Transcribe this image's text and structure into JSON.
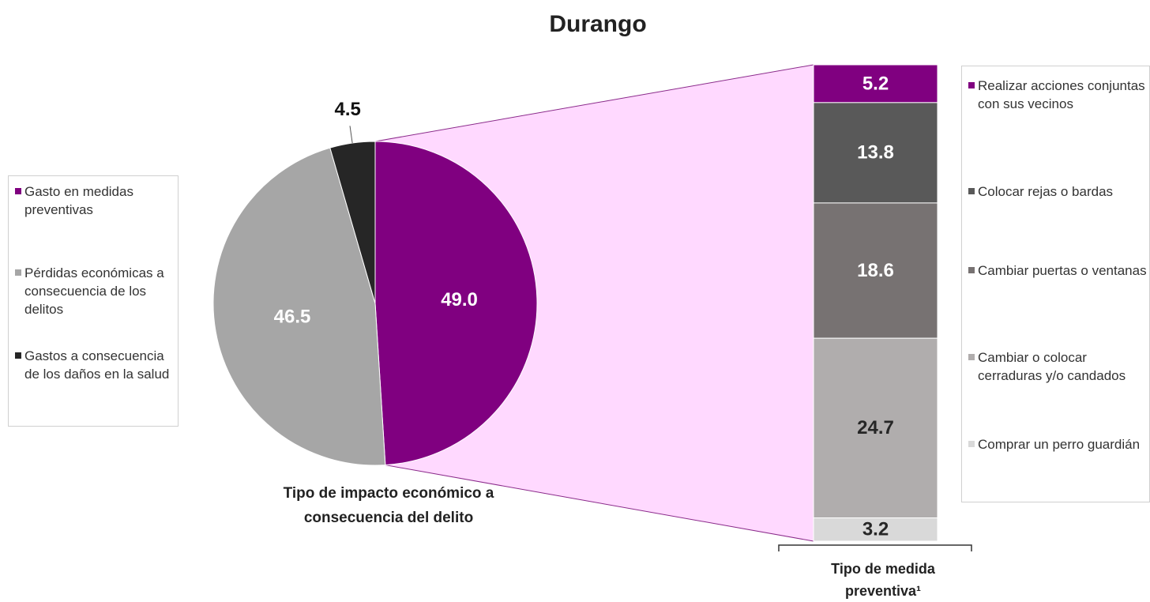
{
  "chart_data": [
    {
      "type": "pie",
      "title": "Durango",
      "categories": [
        "Gasto en medidas preventivas",
        "Pérdidas económicas a consecuencia de los delitos",
        "Gastos a consecuencia de los daños en la salud"
      ],
      "values": [
        49.0,
        46.5,
        4.5
      ],
      "value_labels": [
        "49.0",
        "46.5",
        "4.5"
      ],
      "colors": [
        "#800080",
        "#a6a6a6",
        "#262626"
      ],
      "caption": "Tipo de impacto económico a consecuencia del delito"
    },
    {
      "type": "stacked_bar",
      "categories": [
        "Realizar acciones conjuntas con sus vecinos",
        "Colocar rejas o bardas",
        "Cambiar puertas o ventanas",
        "Cambiar o colocar cerraduras y/o candados",
        "Comprar un perro guardián"
      ],
      "values": [
        5.2,
        13.8,
        18.6,
        24.7,
        3.2
      ],
      "value_labels": [
        "5.2",
        "13.8",
        "18.6",
        "24.7",
        "3.2"
      ],
      "colors": [
        "#800080",
        "#595959",
        "#777272",
        "#b0adad",
        "#d9d9d9"
      ],
      "label_colors": [
        "#ffffff",
        "#ffffff",
        "#ffffff",
        "#262626",
        "#262626"
      ],
      "caption": "Tipo de medida preventiva¹"
    }
  ]
}
